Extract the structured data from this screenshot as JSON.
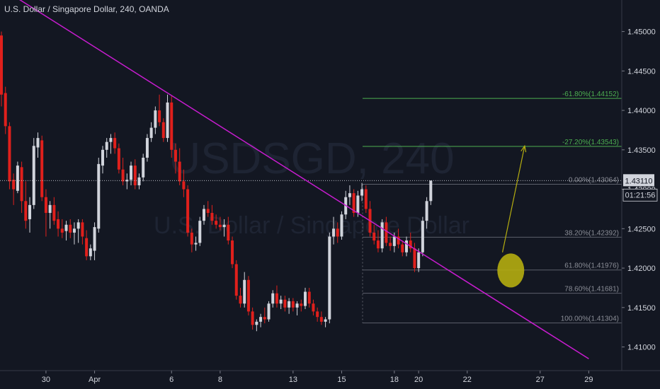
{
  "header": {
    "title": "U.S. Dollar / Singapore Dollar, 240, OANDA"
  },
  "watermark": {
    "symbol": "USDSGD, 240",
    "description": "U.S. Dollar / Singapore Dollar"
  },
  "price_badge": {
    "price": "1.43110",
    "countdown": "01:21:56"
  },
  "colors": {
    "up": "#d1d4dc",
    "down": "#e0201c",
    "trendline": "#c71ccf",
    "fib": "#4caf50",
    "ellipse": "#b5ad10",
    "arrow": "#b5ad10"
  },
  "chart_data": {
    "type": "candlestick",
    "title": "U.S. Dollar / Singapore Dollar, 240, OANDA",
    "ylim": [
      1.407,
      1.454
    ],
    "yticks": [
      "1.45000",
      "1.44500",
      "1.44000",
      "1.43500",
      "1.43000",
      "1.42500",
      "1.42000",
      "1.41500",
      "1.41000"
    ],
    "xticks": [
      {
        "label": "30",
        "index": 11
      },
      {
        "label": "Apr",
        "index": 23
      },
      {
        "label": "6",
        "index": 42
      },
      {
        "label": "8",
        "index": 54
      },
      {
        "label": "13",
        "index": 72
      },
      {
        "label": "15",
        "index": 84
      },
      {
        "label": "18",
        "index": 97
      },
      {
        "label": "20",
        "index": 103
      },
      {
        "label": "22",
        "index": 115
      },
      {
        "label": "27",
        "index": 133
      },
      {
        "label": "29",
        "index": 145
      }
    ],
    "candles": [
      [
        1.4495,
        1.45,
        1.4405,
        1.442
      ],
      [
        1.4422,
        1.443,
        1.437,
        1.438
      ],
      [
        1.438,
        1.4385,
        1.43,
        1.431
      ],
      [
        1.4312,
        1.432,
        1.428,
        1.43
      ],
      [
        1.4298,
        1.4335,
        1.4295,
        1.433
      ],
      [
        1.4328,
        1.4335,
        1.427,
        1.4285
      ],
      [
        1.4285,
        1.431,
        1.425,
        1.426
      ],
      [
        1.4262,
        1.429,
        1.4245,
        1.428
      ],
      [
        1.428,
        1.4365,
        1.4275,
        1.4355
      ],
      [
        1.4353,
        1.4372,
        1.434,
        1.4365
      ],
      [
        1.4362,
        1.4368,
        1.4285,
        1.429
      ],
      [
        1.429,
        1.43,
        1.424,
        1.427
      ],
      [
        1.427,
        1.4285,
        1.425,
        1.428
      ],
      [
        1.428,
        1.429,
        1.4255,
        1.426
      ],
      [
        1.4262,
        1.4272,
        1.424,
        1.425
      ],
      [
        1.425,
        1.4262,
        1.4238,
        1.4245
      ],
      [
        1.4247,
        1.426,
        1.4235,
        1.4255
      ],
      [
        1.4255,
        1.4262,
        1.4238,
        1.4245
      ],
      [
        1.4245,
        1.4258,
        1.423,
        1.425
      ],
      [
        1.425,
        1.4262,
        1.4232,
        1.4258
      ],
      [
        1.4258,
        1.4262,
        1.423,
        1.424
      ],
      [
        1.4238,
        1.4248,
        1.421,
        1.4215
      ],
      [
        1.4215,
        1.423,
        1.421,
        1.4225
      ],
      [
        1.4222,
        1.4258,
        1.421,
        1.4252
      ],
      [
        1.425,
        1.434,
        1.4245,
        1.4332
      ],
      [
        1.433,
        1.4355,
        1.432,
        1.435
      ],
      [
        1.435,
        1.4365,
        1.434,
        1.436
      ],
      [
        1.436,
        1.437,
        1.4345,
        1.4365
      ],
      [
        1.4365,
        1.4372,
        1.4345,
        1.4352
      ],
      [
        1.4352,
        1.4358,
        1.432,
        1.4325
      ],
      [
        1.4325,
        1.434,
        1.4305,
        1.431
      ],
      [
        1.431,
        1.432,
        1.43,
        1.4312
      ],
      [
        1.4312,
        1.4335,
        1.4305,
        1.433
      ],
      [
        1.433,
        1.4338,
        1.43,
        1.4305
      ],
      [
        1.4305,
        1.432,
        1.43,
        1.4315
      ],
      [
        1.4315,
        1.4345,
        1.431,
        1.434
      ],
      [
        1.434,
        1.437,
        1.4335,
        1.4365
      ],
      [
        1.4365,
        1.4385,
        1.436,
        1.4378
      ],
      [
        1.4378,
        1.4405,
        1.437,
        1.44
      ],
      [
        1.44,
        1.442,
        1.438,
        1.4385
      ],
      [
        1.4385,
        1.439,
        1.436,
        1.4365
      ],
      [
        1.4365,
        1.442,
        1.436,
        1.441
      ],
      [
        1.441,
        1.4418,
        1.434,
        1.435
      ],
      [
        1.435,
        1.4358,
        1.432,
        1.4335
      ],
      [
        1.4335,
        1.4352,
        1.4305,
        1.431
      ],
      [
        1.431,
        1.4325,
        1.429,
        1.43
      ],
      [
        1.43,
        1.4305,
        1.424,
        1.4245
      ],
      [
        1.4245,
        1.425,
        1.422,
        1.423
      ],
      [
        1.423,
        1.424,
        1.4222,
        1.4232
      ],
      [
        1.4232,
        1.4265,
        1.4228,
        1.426
      ],
      [
        1.426,
        1.428,
        1.4255,
        1.4275
      ],
      [
        1.4275,
        1.4285,
        1.4265,
        1.427
      ],
      [
        1.427,
        1.428,
        1.4255,
        1.426
      ],
      [
        1.426,
        1.4268,
        1.425,
        1.4255
      ],
      [
        1.4255,
        1.4265,
        1.4248,
        1.4252
      ],
      [
        1.4252,
        1.4262,
        1.424,
        1.4255
      ],
      [
        1.4255,
        1.4265,
        1.423,
        1.4235
      ],
      [
        1.4235,
        1.424,
        1.42,
        1.4205
      ],
      [
        1.4205,
        1.421,
        1.416,
        1.4165
      ],
      [
        1.4165,
        1.4175,
        1.415,
        1.4155
      ],
      [
        1.4155,
        1.4195,
        1.415,
        1.4185
      ],
      [
        1.4185,
        1.419,
        1.414,
        1.4145
      ],
      [
        1.4145,
        1.415,
        1.4122,
        1.4128
      ],
      [
        1.4128,
        1.4135,
        1.412,
        1.4132
      ],
      [
        1.4132,
        1.4142,
        1.4125,
        1.4138
      ],
      [
        1.4138,
        1.415,
        1.413,
        1.4135
      ],
      [
        1.4135,
        1.4158,
        1.4132,
        1.4155
      ],
      [
        1.4155,
        1.4172,
        1.415,
        1.4168
      ],
      [
        1.4168,
        1.4178,
        1.415,
        1.4155
      ],
      [
        1.4155,
        1.4165,
        1.4148,
        1.416
      ],
      [
        1.416,
        1.4165,
        1.4145,
        1.415
      ],
      [
        1.415,
        1.4162,
        1.4142,
        1.4158
      ],
      [
        1.4158,
        1.4162,
        1.4145,
        1.415
      ],
      [
        1.415,
        1.4158,
        1.414,
        1.4155
      ],
      [
        1.4155,
        1.416,
        1.4145,
        1.4152
      ],
      [
        1.4152,
        1.4175,
        1.4148,
        1.417
      ],
      [
        1.417,
        1.4175,
        1.415,
        1.4155
      ],
      [
        1.4155,
        1.416,
        1.414,
        1.4145
      ],
      [
        1.4145,
        1.415,
        1.4132,
        1.4138
      ],
      [
        1.4138,
        1.4145,
        1.4128,
        1.4132
      ],
      [
        1.4132,
        1.4138,
        1.4125,
        1.4135
      ],
      [
        1.4135,
        1.4245,
        1.413,
        1.424
      ],
      [
        1.424,
        1.4265,
        1.423,
        1.425
      ],
      [
        1.425,
        1.4258,
        1.4232,
        1.424
      ],
      [
        1.424,
        1.4272,
        1.4236,
        1.4268
      ],
      [
        1.4268,
        1.4298,
        1.4262,
        1.429
      ],
      [
        1.429,
        1.4305,
        1.428,
        1.4295
      ],
      [
        1.4295,
        1.43,
        1.4265,
        1.427
      ],
      [
        1.427,
        1.4298,
        1.4265,
        1.4292
      ],
      [
        1.4292,
        1.4308,
        1.4285,
        1.43
      ],
      [
        1.43,
        1.4305,
        1.427,
        1.4275
      ],
      [
        1.4275,
        1.4285,
        1.424,
        1.4245
      ],
      [
        1.4245,
        1.4255,
        1.423,
        1.4235
      ],
      [
        1.4235,
        1.4248,
        1.422,
        1.4225
      ],
      [
        1.4225,
        1.4262,
        1.422,
        1.4258
      ],
      [
        1.4258,
        1.4265,
        1.4228,
        1.4232
      ],
      [
        1.4232,
        1.424,
        1.4222,
        1.4228
      ],
      [
        1.4228,
        1.4245,
        1.422,
        1.424
      ],
      [
        1.424,
        1.425,
        1.4225,
        1.423
      ],
      [
        1.423,
        1.4235,
        1.4215,
        1.422
      ],
      [
        1.422,
        1.424,
        1.4215,
        1.4235
      ],
      [
        1.4235,
        1.4245,
        1.422,
        1.4225
      ],
      [
        1.4225,
        1.4232,
        1.4195,
        1.42
      ],
      [
        1.42,
        1.4225,
        1.4195,
        1.422
      ],
      [
        1.422,
        1.4265,
        1.4215,
        1.426
      ],
      [
        1.426,
        1.429,
        1.425,
        1.4285
      ],
      [
        1.4285,
        1.4311,
        1.428,
        1.4311
      ]
    ],
    "trendline": {
      "from": {
        "index": 0,
        "price": 1.4555
      },
      "to": {
        "index": 145,
        "price": 1.4085
      }
    },
    "fib_levels": [
      {
        "label": "-61.80%(1.44152)",
        "price": 1.44152
      },
      {
        "label": "-27.20%(1.43543)",
        "price": 1.43543
      },
      {
        "label": "0.00%(1.43064)",
        "price": 1.43064
      },
      {
        "label": "38.20%(1.42392)",
        "price": 1.42392
      },
      {
        "label": "61.80%(1.41976)",
        "price": 1.41976
      },
      {
        "label": "78.60%(1.41681)",
        "price": 1.41681
      },
      {
        "label": "100.00%(1.41304)",
        "price": 1.41304
      }
    ],
    "last_price": 1.4311,
    "projection_arrow": {
      "from": {
        "index": 123,
        "price": 1.422
      },
      "to": {
        "index": 129,
        "price": 1.4355
      }
    },
    "highlight_ellipse": {
      "index": 124,
      "price": 1.4197
    }
  }
}
